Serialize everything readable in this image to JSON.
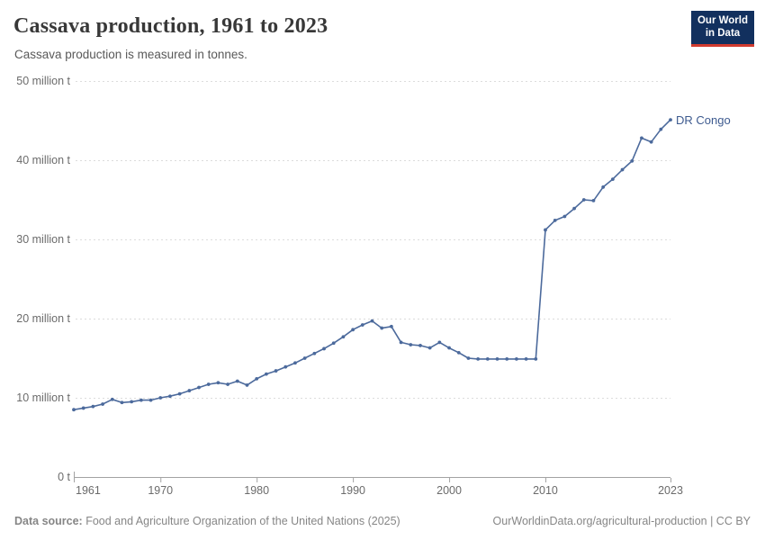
{
  "header": {
    "title": "Cassava production, 1961 to 2023",
    "subtitle": "Cassava production is measured in tonnes."
  },
  "logo": {
    "line1": "Our World",
    "line2": "in Data",
    "bg_color": "#12305E",
    "accent_color": "#D13B2F"
  },
  "chart_data": {
    "type": "line",
    "title": "Cassava production, 1961 to 2023",
    "unit": "tonnes",
    "xlabel": "",
    "ylabel": "",
    "xlim": [
      1961,
      2023
    ],
    "ylim_million_tonnes": [
      0,
      50
    ],
    "grid": "horizontal-dashed",
    "legend_position": "end-of-line-label",
    "x_ticks": [
      1961,
      1970,
      1980,
      1990,
      2000,
      2010,
      2023
    ],
    "y_ticks": [
      {
        "value": 0,
        "label": "0 t"
      },
      {
        "value": 10,
        "label": "10 million t"
      },
      {
        "value": 20,
        "label": "20 million t"
      },
      {
        "value": 30,
        "label": "30 million t"
      },
      {
        "value": 40,
        "label": "40 million t"
      },
      {
        "value": 50,
        "label": "50 million t"
      }
    ],
    "series": [
      {
        "name": "DR Congo",
        "color": "#4C6A9C",
        "label_color": "#3D5A8F",
        "x": [
          1961,
          1962,
          1963,
          1964,
          1965,
          1966,
          1967,
          1968,
          1969,
          1970,
          1971,
          1972,
          1973,
          1974,
          1975,
          1976,
          1977,
          1978,
          1979,
          1980,
          1981,
          1982,
          1983,
          1984,
          1985,
          1986,
          1987,
          1988,
          1989,
          1990,
          1991,
          1992,
          1993,
          1994,
          1995,
          1996,
          1997,
          1998,
          1999,
          2000,
          2001,
          2002,
          2003,
          2004,
          2005,
          2006,
          2007,
          2008,
          2009,
          2010,
          2011,
          2012,
          2013,
          2014,
          2015,
          2016,
          2017,
          2018,
          2019,
          2020,
          2021,
          2022,
          2023
        ],
        "values_million_tonnes": [
          8.5,
          8.7,
          8.9,
          9.2,
          9.8,
          9.4,
          9.5,
          9.7,
          9.7,
          10.0,
          10.2,
          10.5,
          10.9,
          11.3,
          11.7,
          11.9,
          11.7,
          12.1,
          11.6,
          12.4,
          13.0,
          13.4,
          13.9,
          14.4,
          15.0,
          15.6,
          16.2,
          16.9,
          17.7,
          18.6,
          19.2,
          19.7,
          18.8,
          19.0,
          17.0,
          16.7,
          16.6,
          16.3,
          17.0,
          16.3,
          15.7,
          15.0,
          14.9,
          14.9,
          14.9,
          14.9,
          14.9,
          14.9,
          14.9,
          31.2,
          32.4,
          32.9,
          33.9,
          35.0,
          34.9,
          36.6,
          37.6,
          38.8,
          39.9,
          42.8,
          42.3,
          43.9,
          45.1
        ]
      }
    ]
  },
  "footer": {
    "source_label": "Data source:",
    "source_text": " Food and Agriculture Organization of the United Nations (2025)",
    "credit_text": "OurWorldinData.org/agricultural-production | CC BY"
  },
  "colors": {
    "gridline": "#dcdcdc",
    "axis": "#a3a3a3",
    "tick_text": "#6b6b6b"
  }
}
